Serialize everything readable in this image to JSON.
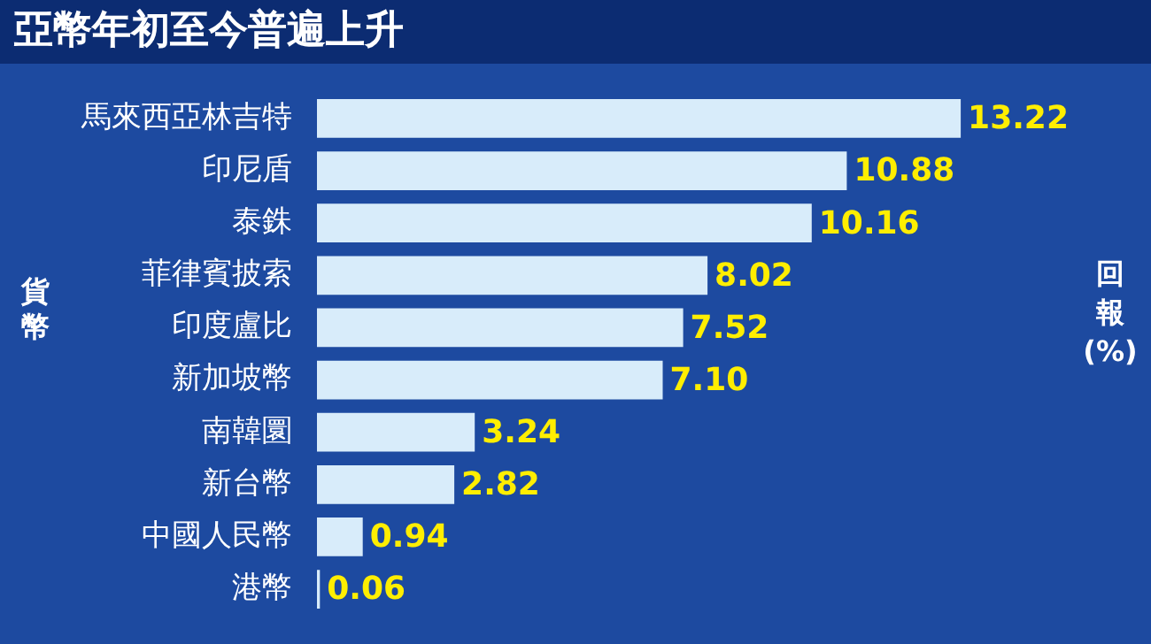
{
  "chart_data": {
    "type": "bar",
    "orientation": "horizontal",
    "title": "亞幣年初至今普遍上升",
    "ylabel": "貨幣",
    "xlabel": "回報(%)",
    "categories": [
      "馬來西亞林吉特",
      "印尼盾",
      "泰銖",
      "菲律賓披索",
      "印度盧比",
      "新加坡幣",
      "南韓圜",
      "新台幣",
      "中國人民幣",
      "港幣"
    ],
    "values": [
      13.22,
      10.88,
      10.16,
      8.02,
      7.52,
      7.1,
      3.24,
      2.82,
      0.94,
      0.06
    ],
    "value_labels": [
      "13.22",
      "10.88",
      "10.16",
      "8.02",
      "7.52",
      "7.10",
      "3.24",
      "2.82",
      "0.94",
      "0.06"
    ],
    "color": "#d8ecfa",
    "tick_labels": "y"
  }
}
